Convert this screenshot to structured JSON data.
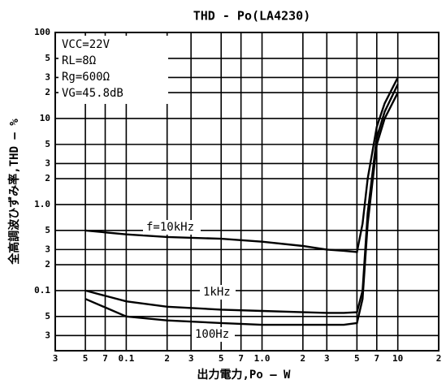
{
  "chart_data": {
    "type": "line",
    "title": "THD - Po(LA4230)",
    "xlabel": "出力電力,Po — W",
    "ylabel": "全高調波ひずみ率,THD — %",
    "log_x": true,
    "log_y": true,
    "grid": true,
    "annotations": [
      "VCC=22V",
      "RL=8Ω",
      "Rg=600Ω",
      "VG=45.8dB"
    ],
    "x": [
      0.05,
      0.1,
      0.2,
      0.5,
      1,
      2,
      3,
      4,
      5,
      5.5,
      6,
      7,
      8,
      10
    ],
    "series": [
      {
        "name": "f=10kHz",
        "color": "#000000",
        "values": [
          0.5,
          0.45,
          0.42,
          0.4,
          0.37,
          0.33,
          0.3,
          0.29,
          0.28,
          0.6,
          2,
          8,
          15,
          30
        ]
      },
      {
        "name": "1kHz",
        "color": "#000000",
        "values": [
          0.1,
          0.075,
          0.065,
          0.06,
          0.058,
          0.056,
          0.055,
          0.055,
          0.056,
          0.1,
          0.8,
          6,
          12,
          25
        ]
      },
      {
        "name": "100Hz",
        "color": "#000000",
        "values": [
          0.08,
          0.05,
          0.045,
          0.042,
          0.04,
          0.04,
          0.04,
          0.04,
          0.042,
          0.08,
          0.6,
          5,
          10,
          20
        ]
      }
    ],
    "xlim": [
      0.03,
      20
    ],
    "xticks": [
      {
        "value": 0.03,
        "label": "3"
      },
      {
        "value": 0.05,
        "label": "5"
      },
      {
        "value": 0.07,
        "label": "7"
      },
      0.1,
      {
        "value": 0.2,
        "label": "2"
      },
      {
        "value": 0.3,
        "label": "3"
      },
      {
        "value": 0.5,
        "label": "5"
      },
      {
        "value": 0.7,
        "label": "7"
      },
      {
        "value": 1,
        "label": "1.0"
      },
      {
        "value": 2,
        "label": "2"
      },
      {
        "value": 3,
        "label": "3"
      },
      {
        "value": 5,
        "label": "5"
      },
      {
        "value": 7,
        "label": "7"
      },
      10,
      {
        "value": 20,
        "label": "2"
      }
    ],
    "ylim": [
      0.02,
      100
    ],
    "yticks": [
      100,
      {
        "value": 50,
        "label": "5"
      },
      {
        "value": 30,
        "label": "3"
      },
      {
        "value": 20,
        "label": "2"
      },
      10,
      {
        "value": 5,
        "label": "5"
      },
      {
        "value": 3,
        "label": "3"
      },
      {
        "value": 2,
        "label": "2"
      },
      {
        "value": 1,
        "label": "1.0"
      },
      {
        "value": 0.5,
        "label": "5"
      },
      {
        "value": 0.3,
        "label": "3"
      },
      {
        "value": 0.2,
        "label": "2"
      },
      0.1,
      {
        "value": 0.05,
        "label": "5"
      },
      {
        "value": 0.03,
        "label": "3"
      }
    ]
  }
}
